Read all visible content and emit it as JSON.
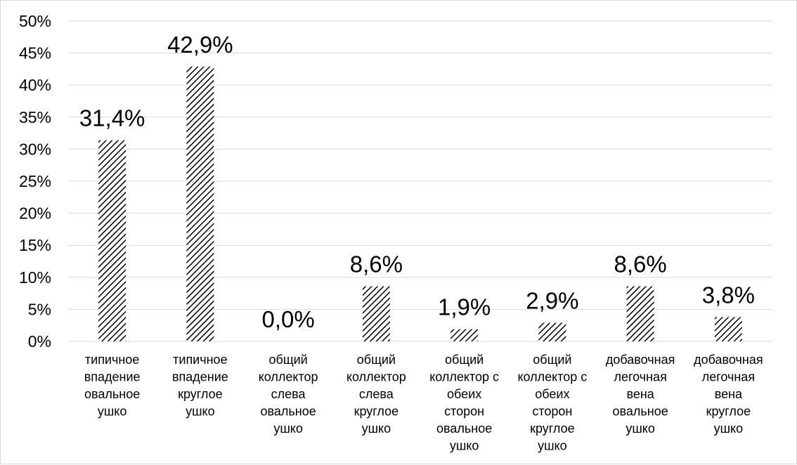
{
  "chart_data": {
    "type": "bar",
    "categories": [
      [
        "типичное",
        "впадение",
        "овальное",
        "ушко"
      ],
      [
        "типичное",
        "впадение",
        "круглое",
        "ушко"
      ],
      [
        "общий",
        "коллектор",
        "слева",
        "овальное",
        "ушко"
      ],
      [
        "общий",
        "коллектор",
        "слева",
        "круглое",
        "ушко"
      ],
      [
        "общий",
        "коллектор с",
        "обеих",
        "сторон",
        "овальное",
        "ушко"
      ],
      [
        "общий",
        "коллектор с",
        "обеих",
        "сторон",
        "круглое",
        "ушко"
      ],
      [
        "добавочная",
        "легочная",
        "вена",
        "овальное",
        "ушко"
      ],
      [
        "добавочная",
        "легочная",
        "вена",
        "круглое",
        "ушко"
      ]
    ],
    "values": [
      31.4,
      42.9,
      0.0,
      8.6,
      1.9,
      2.9,
      8.6,
      3.8
    ],
    "data_labels": [
      "31,4%",
      "42,9%",
      "0,0%",
      "8,6%",
      "1,9%",
      "2,9%",
      "8,6%",
      "3,8%"
    ],
    "ylim": [
      0,
      50
    ],
    "yticks": [
      "0%",
      "5%",
      "10%",
      "15%",
      "20%",
      "25%",
      "30%",
      "35%",
      "40%",
      "45%",
      "50%"
    ],
    "grid": true,
    "bar_fill": "diagonal-hatch",
    "bar_color": "#000000",
    "title": "",
    "xlabel": "",
    "ylabel": ""
  }
}
